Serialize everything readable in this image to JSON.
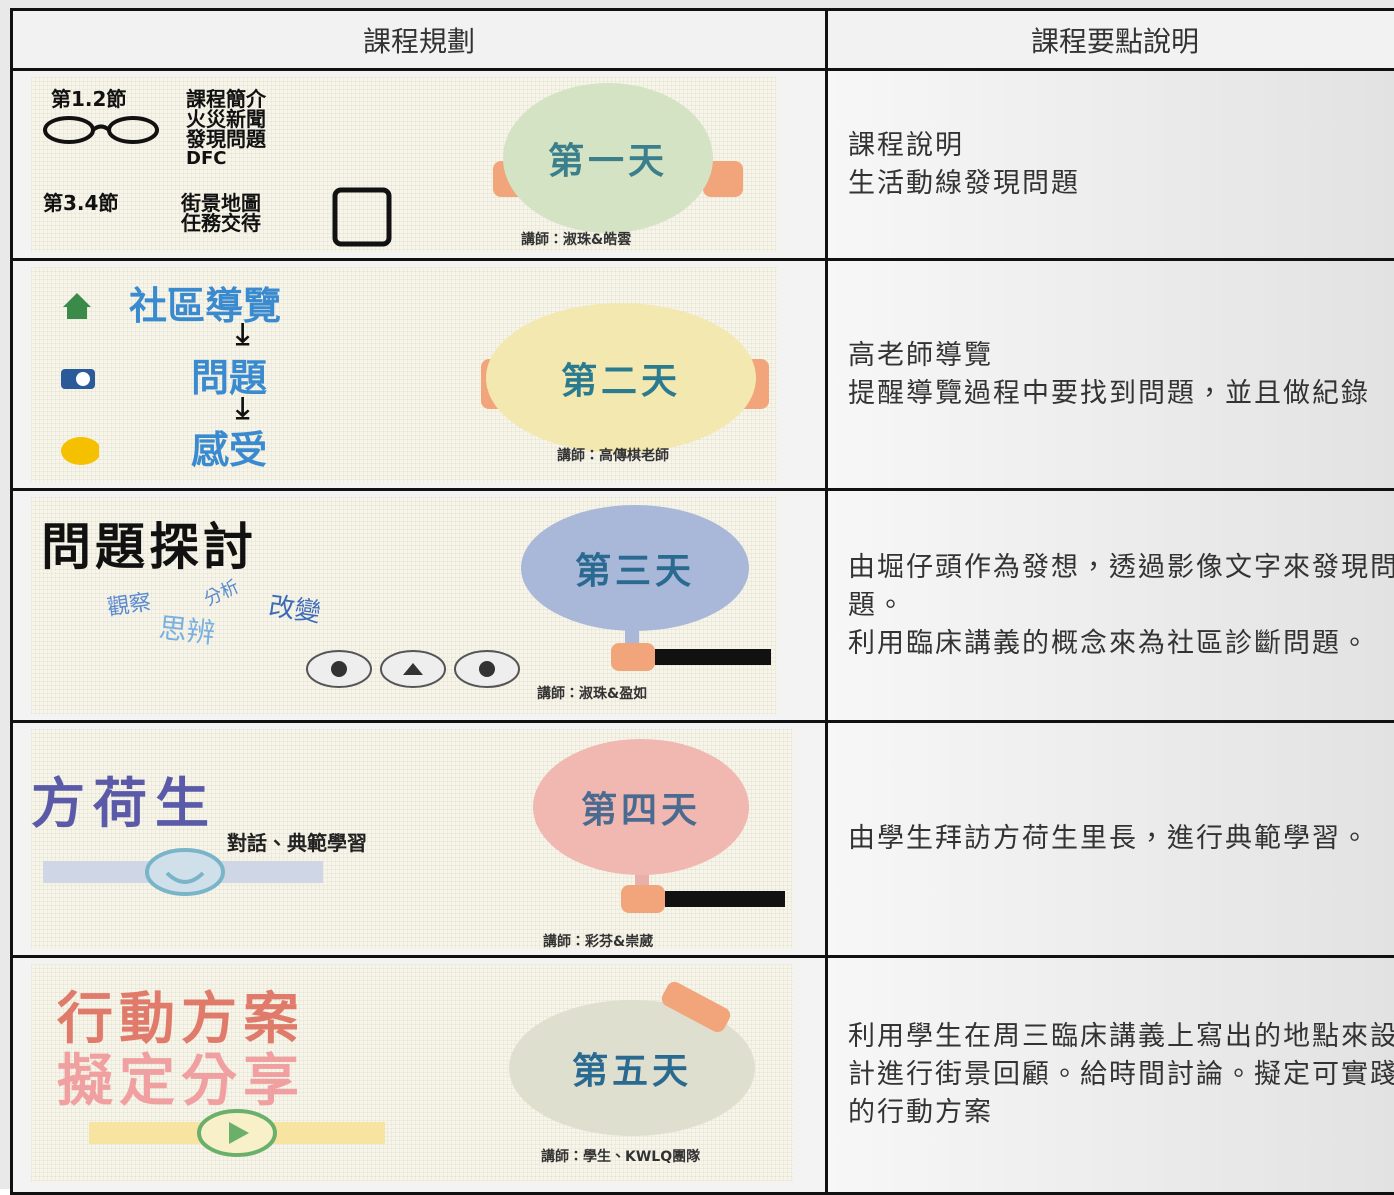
{
  "table": {
    "headers": [
      "課程規劃",
      "課程要點說明"
    ],
    "rows": [
      {
        "plan": {
          "session_a": "第1.2節",
          "items_a": [
            "課程簡介",
            "火災新聞",
            "發現問題",
            "DFC"
          ],
          "session_b": "第3.4節",
          "items_b": [
            "街景地圖",
            "任務交待"
          ],
          "day": "第一天",
          "teacher": "講師：淑珠&皓雲"
        },
        "notes": [
          "課程說明",
          "生活動線發現問題"
        ]
      },
      {
        "plan": {
          "steps": [
            "社區導覽",
            "問題",
            "感受"
          ],
          "day": "第二天",
          "teacher": "講師：高傳棋老師"
        },
        "notes": [
          "高老師導覽",
          "提醒導覽過程中要找到問題，並且做紀錄"
        ]
      },
      {
        "plan": {
          "title": "問題探討",
          "words": [
            "觀察",
            "分析",
            "改變",
            "思辨"
          ],
          "day": "第三天",
          "teacher": "講師：淑珠&盈如"
        },
        "notes": [
          "由堀仔頭作為發想，透過影像文字來發現問題。",
          "利用臨床講義的概念來為社區診斷問題。"
        ]
      },
      {
        "plan": {
          "title": "方荷生",
          "subtitle": "對話、典範學習",
          "day": "第四天",
          "teacher": "講師：彩芬&崇葳"
        },
        "notes": [
          "由學生拜訪方荷生里長，進行典範學習。"
        ]
      },
      {
        "plan": {
          "title_lines": [
            "行動方案",
            "擬定分享"
          ],
          "day": "第五天",
          "teacher": "講師：學生、KWLQ團隊"
        },
        "notes": [
          "利用學生在周三臨床講義上寫出的地點來設計進行街景回顧。給時間討論。擬定可實踐的行動方案"
        ]
      }
    ]
  }
}
